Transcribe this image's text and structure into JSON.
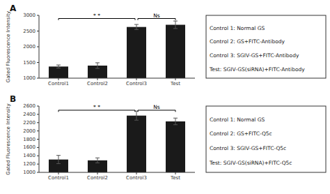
{
  "chart_data": [
    {
      "type": "bar",
      "title": "A",
      "categories": [
        "Control1",
        "Control2",
        "Control3",
        "Test"
      ],
      "values": [
        1370,
        1400,
        2630,
        2700
      ],
      "errors": [
        50,
        90,
        80,
        120
      ],
      "color": "#1a1a1a",
      "ylim": [
        1000,
        3000
      ],
      "yticks": [
        1000,
        1500,
        2000,
        2500,
        3000
      ],
      "ylabel": "Gated Fluorescence Intensity",
      "grid": false,
      "annotations": [
        {
          "text": "* *",
          "from": "Control1",
          "to": "Control3",
          "y": 2900
        },
        {
          "text": "Ns",
          "from": "Control3",
          "to": "Test",
          "y": 2900
        }
      ],
      "notes": [
        "Control 1: Normal GS",
        "Control 2: GS+FITC-Antibody",
        "Control 3: SGIV-GS+FITC-Antibody",
        "Test: SGIV-GS(siRNA)+FITC-Antibody"
      ]
    },
    {
      "type": "bar",
      "title": "B",
      "categories": [
        "Control1",
        "Control2",
        "Control3",
        "Test"
      ],
      "values": [
        1310,
        1290,
        2370,
        2230
      ],
      "errors": [
        100,
        60,
        110,
        80
      ],
      "color": "#1a1a1a",
      "ylim": [
        1000,
        2600
      ],
      "yticks": [
        1000,
        1200,
        1400,
        1600,
        1800,
        2000,
        2200,
        2400,
        2600
      ],
      "ylabel": "Gated Fluorescence Intensity",
      "grid": false,
      "annotations": [
        {
          "text": "* *",
          "from": "Control1",
          "to": "Control3",
          "y": 2500
        },
        {
          "text": "Ns",
          "from": "Control3",
          "to": "Test",
          "y": 2500
        }
      ],
      "notes": [
        "Control 1: Normal GS",
        "Control 2: GS+FITC-Q5c",
        "Control 3: SGIV-GS+FITC-Q5c",
        "Test: SGIV-GS(siRNA)+FITC-Q5c"
      ]
    }
  ]
}
